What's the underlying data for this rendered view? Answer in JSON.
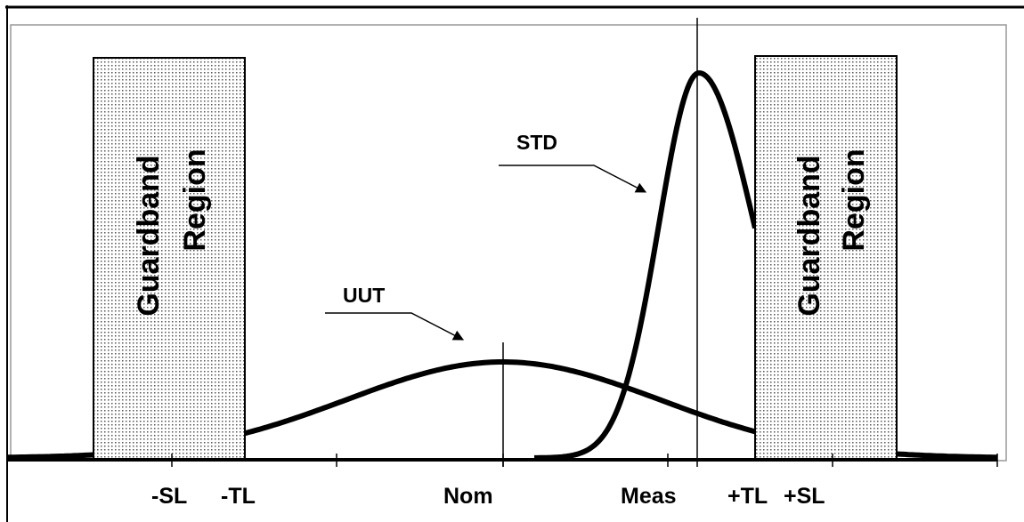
{
  "guardbands": [
    {
      "line1": "Guardband",
      "line2": "Region"
    },
    {
      "line1": "Guardband",
      "line2": "Region"
    }
  ],
  "curves": {
    "uut": "UUT",
    "std": "STD"
  },
  "axis_labels": {
    "minus_sl": "-SL",
    "minus_tl": "-TL",
    "nom": "Nom",
    "meas": "Meas",
    "plus_tl": "+TL",
    "plus_sl": "+SL"
  }
}
